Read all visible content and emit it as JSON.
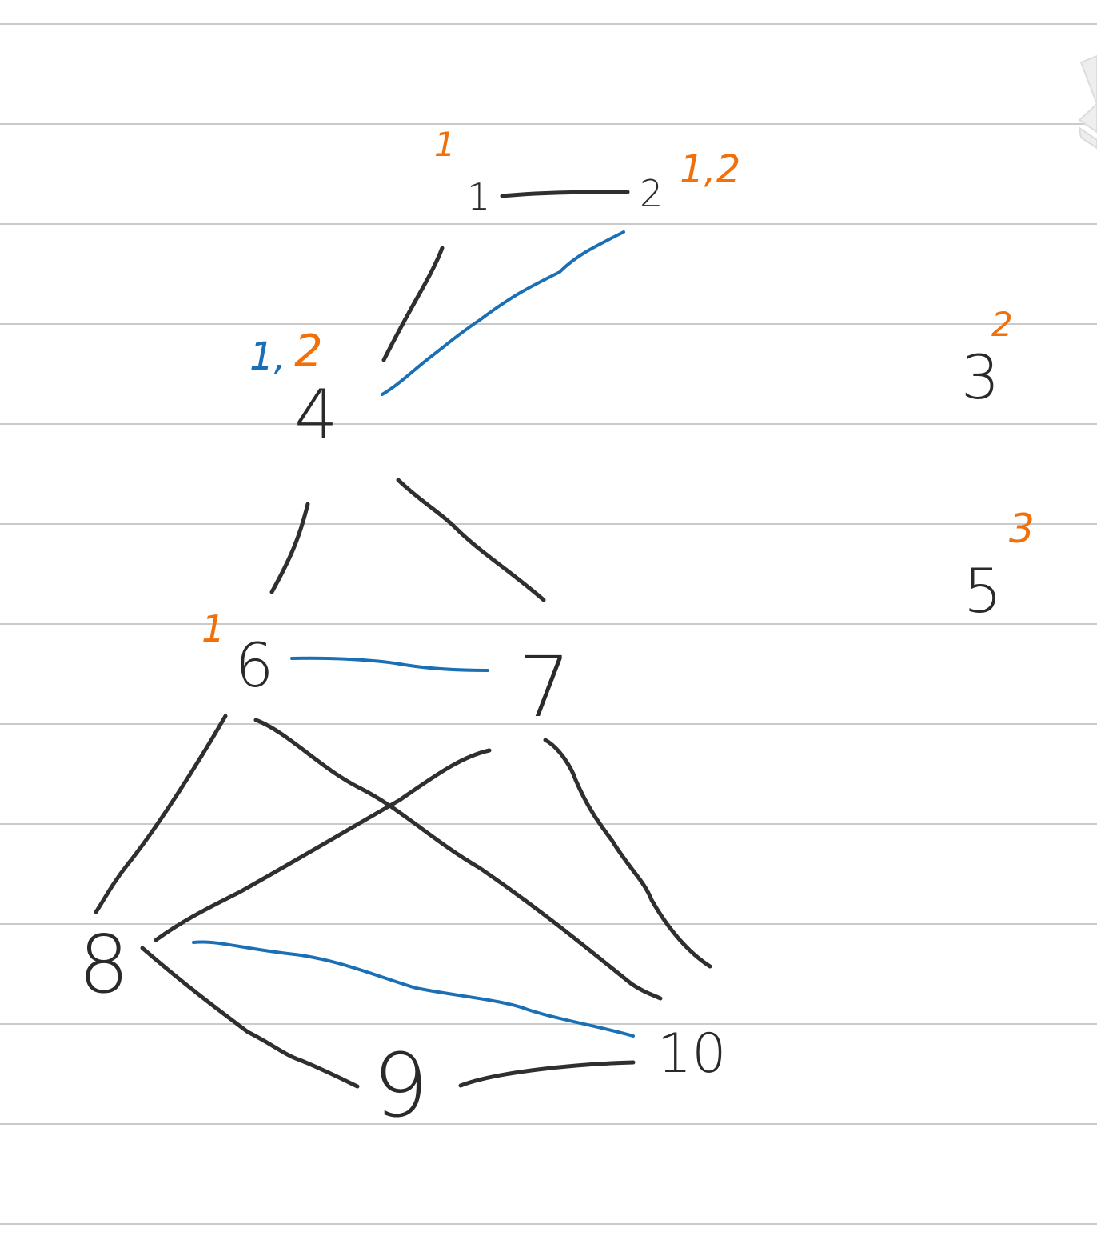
{
  "colors": {
    "ink": "#2a2a2a",
    "orange_annotation": "#f2700a",
    "blue_annotation": "#1a6fb5",
    "ruled_line": "#b9b9b9",
    "paper": "#ffffff"
  },
  "nodes": {
    "n1": "1",
    "n2": "2",
    "n3": "3",
    "n4": "4",
    "n5": "5",
    "n6": "6",
    "n7": "7",
    "n8": "8",
    "n9": "9",
    "n10": "10"
  },
  "annotations": {
    "n1_orange": "1",
    "n2_orange": "1,2",
    "n3_orange": "2",
    "n4_blue": "1,",
    "n4_orange": "2",
    "n5_orange": "3",
    "n6_orange": "1"
  },
  "edges_black": [
    [
      "1",
      "2"
    ],
    [
      "1",
      "4"
    ],
    [
      "4",
      "6"
    ],
    [
      "4",
      "7"
    ],
    [
      "6",
      "8"
    ],
    [
      "6",
      "10"
    ],
    [
      "7",
      "8"
    ],
    [
      "7",
      "10"
    ],
    [
      "8",
      "9"
    ],
    [
      "9",
      "10"
    ]
  ],
  "edges_blue": [
    [
      "2",
      "4"
    ],
    [
      "6",
      "7"
    ],
    [
      "8",
      "10"
    ]
  ],
  "icons": {
    "corner_handle": "scroll-handle-icon"
  }
}
